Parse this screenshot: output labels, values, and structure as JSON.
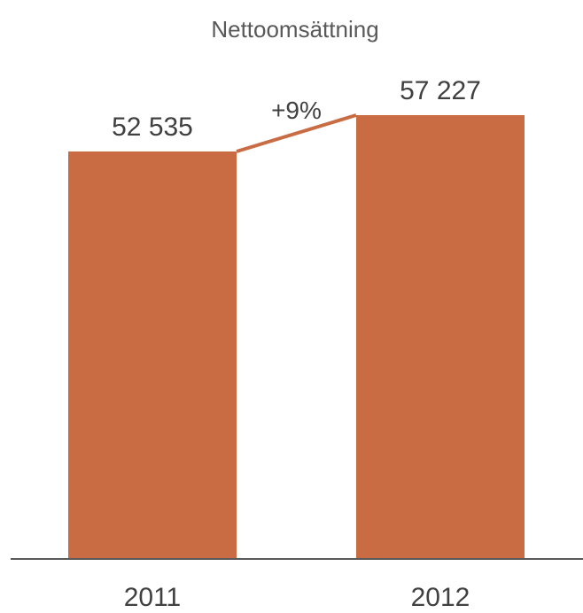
{
  "chart_data": {
    "type": "bar",
    "title": "Nettoomsättning",
    "categories": [
      "2011",
      "2012"
    ],
    "values": [
      52535,
      57227
    ],
    "value_labels": [
      "52 535",
      "57 227"
    ],
    "change_label": "+9%",
    "xlabel": "",
    "ylabel": "",
    "ylim": [
      0,
      57227
    ],
    "grid": false,
    "legend": "none",
    "colors": {
      "bar": "#c96c44",
      "connector": "#c96c44",
      "axis": "#595959",
      "text": "#404040",
      "title": "#595959"
    }
  }
}
